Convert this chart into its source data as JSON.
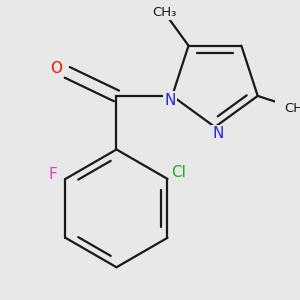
{
  "background_color": "#e8e8e8",
  "bond_color": "#1a1a1a",
  "bond_width": 1.6,
  "atom_colors": {
    "O": "#ee1100",
    "N": "#2222ee",
    "F": "#dd44bb",
    "Cl": "#22aa22",
    "C": "#1a1a1a"
  },
  "font_size_atoms": 11,
  "font_size_methyl": 9.5
}
